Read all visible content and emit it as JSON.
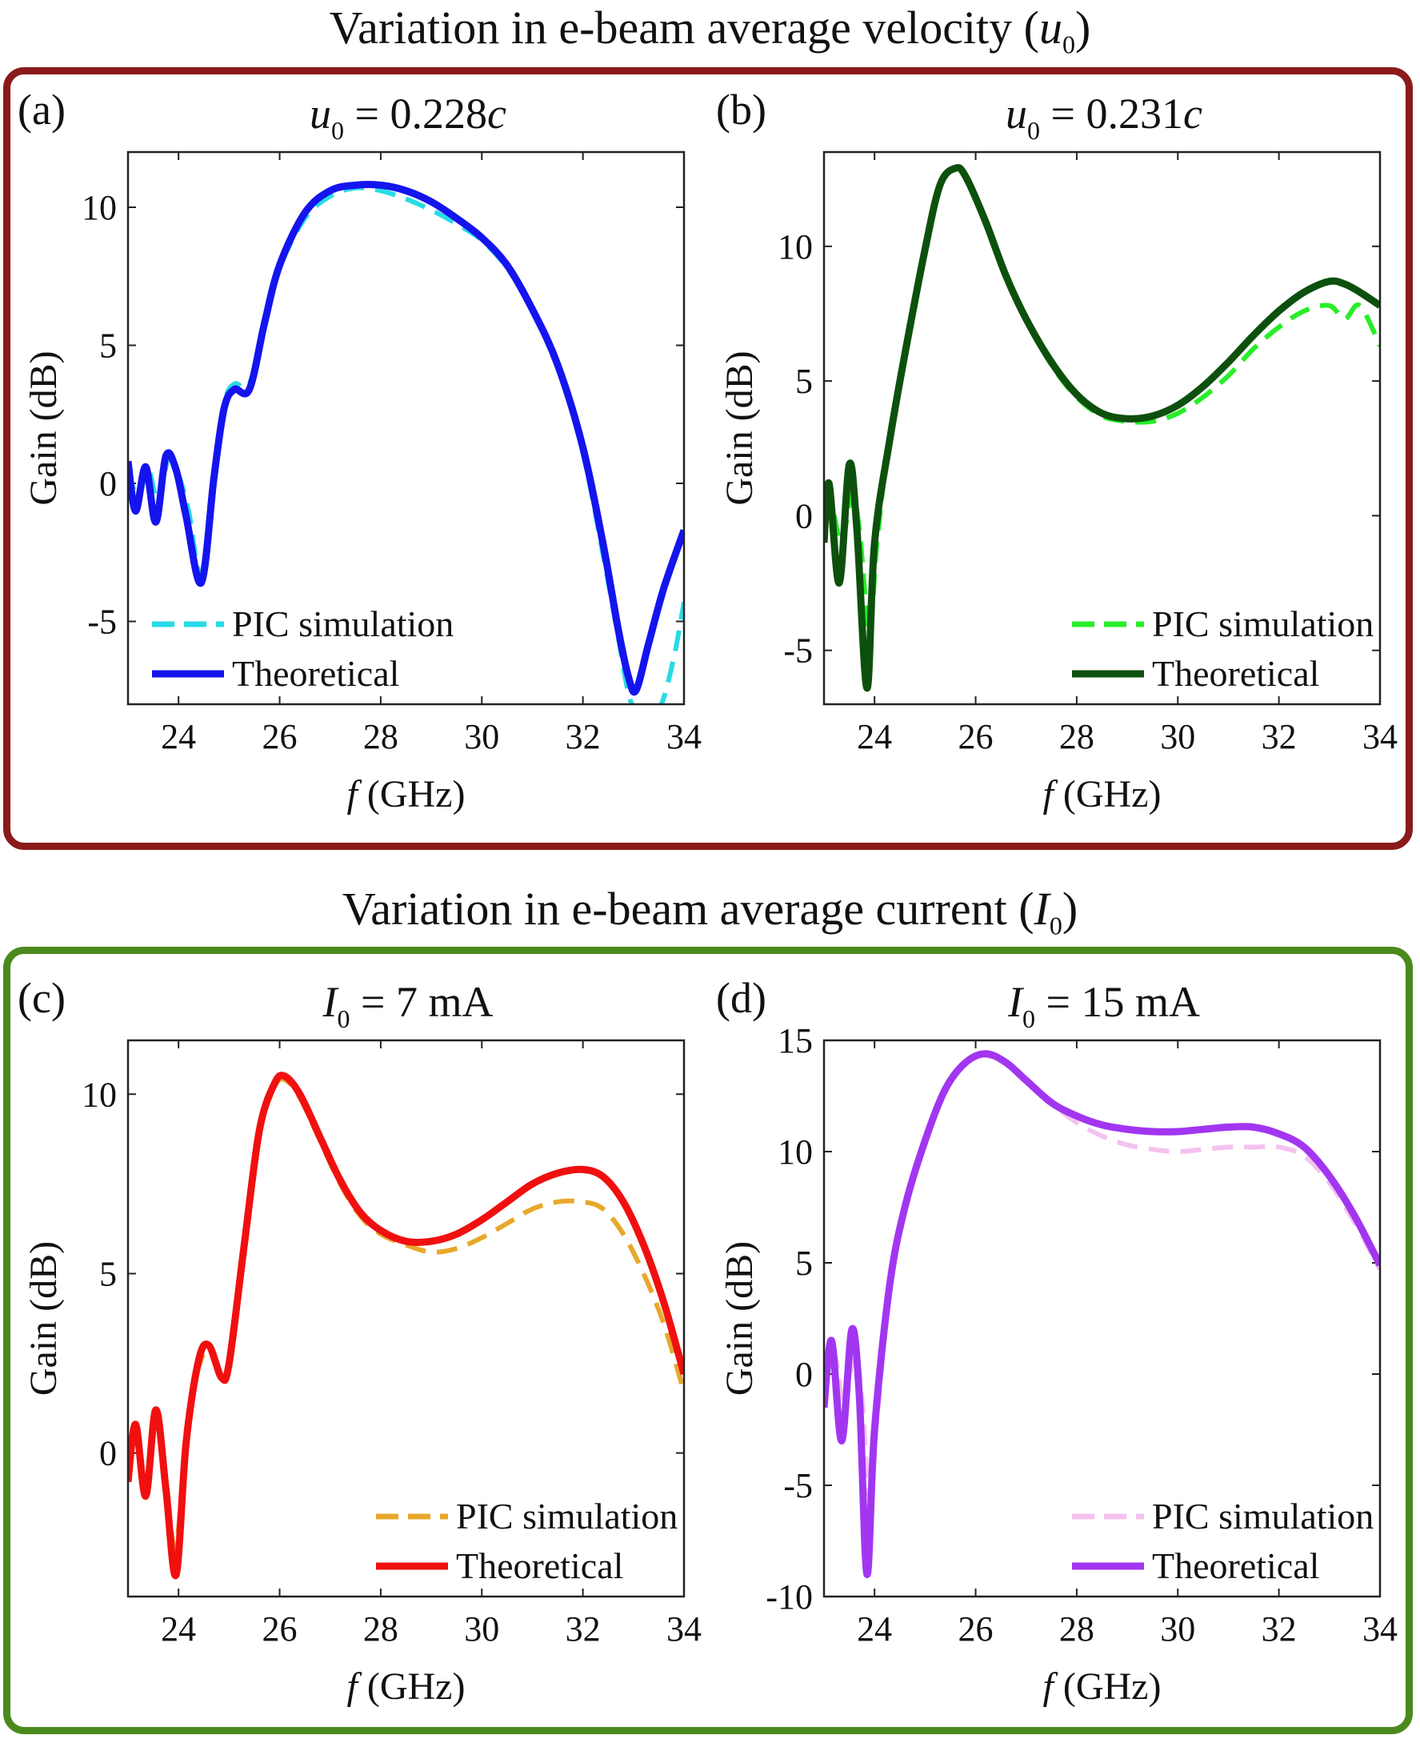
{
  "sections": [
    {
      "title_prefix": "Variation in e-beam average velocity (",
      "title_symbol": "u",
      "title_sub": "0",
      "title_suffix": ")",
      "frame_color": "#8b1a1a"
    },
    {
      "title_prefix": "Variation in e-beam average current (",
      "title_symbol": "I",
      "title_sub": "0",
      "title_suffix": ")",
      "frame_color": "#4a8a1c"
    }
  ],
  "chart_data": [
    {
      "type": "line",
      "panel": "(a)",
      "title_symbol": "u",
      "title_sub": "0",
      "title_rest": " = 0.228",
      "title_unit": "c",
      "xlabel_italic": "f",
      "xlabel": " (GHz)",
      "ylabel": "Gain (dB)",
      "xlim": [
        23,
        34
      ],
      "ylim": [
        -8,
        12
      ],
      "xticks": [
        "24",
        "26",
        "28",
        "30",
        "32",
        "34"
      ],
      "xtick_values": [
        24,
        26,
        28,
        30,
        32,
        34
      ],
      "yticks": [
        "-5",
        "0",
        "5",
        "10"
      ],
      "ytick_values": [
        -5,
        0,
        5,
        10
      ],
      "legend_position": "bottom-left",
      "series": [
        {
          "name": "PIC simulation",
          "style": "dashed",
          "color": "#27dbe6",
          "x": [
            23,
            23.2,
            23.4,
            23.6,
            23.8,
            24.0,
            24.2,
            24.45,
            24.7,
            24.9,
            25.1,
            25.4,
            25.7,
            26.0,
            26.5,
            27.0,
            27.5,
            28.0,
            28.5,
            29.0,
            29.5,
            30.0,
            30.5,
            31.0,
            31.5,
            32.0,
            32.4,
            32.7,
            32.9,
            33.05,
            33.3,
            33.55,
            33.8,
            34.0
          ],
          "y": [
            0.5,
            -0.5,
            0.5,
            -0.7,
            0.9,
            0.3,
            -1.0,
            -3.3,
            0.5,
            2.9,
            3.6,
            3.6,
            5.8,
            7.8,
            9.6,
            10.4,
            10.7,
            10.6,
            10.3,
            9.9,
            9.4,
            8.8,
            7.8,
            6.3,
            4.2,
            1.1,
            -2.6,
            -5.6,
            -7.6,
            -8.2,
            -8.2,
            -8.0,
            -6.3,
            -4.3
          ]
        },
        {
          "name": "Theoretical",
          "style": "solid",
          "color": "#1414ee",
          "x": [
            23,
            23.15,
            23.35,
            23.55,
            23.75,
            23.95,
            24.15,
            24.45,
            24.7,
            24.9,
            25.1,
            25.4,
            25.7,
            26.0,
            26.5,
            27.0,
            27.5,
            28.0,
            28.5,
            29.0,
            29.5,
            30.0,
            30.5,
            31.0,
            31.5,
            32.0,
            32.4,
            32.7,
            32.9,
            33.05,
            33.3,
            33.6,
            34.0
          ],
          "y": [
            0.8,
            -1.0,
            0.6,
            -1.4,
            1.0,
            0.5,
            -1.2,
            -3.6,
            0.2,
            2.7,
            3.4,
            3.4,
            5.8,
            7.9,
            9.8,
            10.6,
            10.8,
            10.8,
            10.6,
            10.2,
            9.6,
            8.9,
            7.9,
            6.3,
            4.3,
            1.3,
            -2.2,
            -5.3,
            -7.0,
            -7.5,
            -5.8,
            -3.8,
            -1.7
          ]
        }
      ]
    },
    {
      "type": "line",
      "panel": "(b)",
      "title_symbol": "u",
      "title_sub": "0",
      "title_rest": " = 0.231",
      "title_unit": "c",
      "xlabel_italic": "f",
      "xlabel": " (GHz)",
      "ylabel": "Gain (dB)",
      "xlim": [
        23,
        34
      ],
      "ylim": [
        -7,
        13.5
      ],
      "xticks": [
        "24",
        "26",
        "28",
        "30",
        "32",
        "34"
      ],
      "xtick_values": [
        24,
        26,
        28,
        30,
        32,
        34
      ],
      "yticks": [
        "-5",
        "0",
        "5",
        "10"
      ],
      "ytick_values": [
        -5,
        0,
        5,
        10
      ],
      "legend_position": "bottom-right",
      "series": [
        {
          "name": "PIC simulation",
          "style": "dashed",
          "color": "#27ee27",
          "x": [
            23,
            23.15,
            23.35,
            23.55,
            23.7,
            23.9,
            24.05,
            24.3,
            24.6,
            25.0,
            25.3,
            25.6,
            25.8,
            26.2,
            26.6,
            27.0,
            27.5,
            28.0,
            28.5,
            29.0,
            29.5,
            30.0,
            30.5,
            31.0,
            31.5,
            32.0,
            32.5,
            33.0,
            33.3,
            33.6,
            34.0
          ],
          "y": [
            -0.5,
            0.3,
            -1.0,
            0.8,
            -0.5,
            -4.3,
            -1.0,
            3.0,
            6.0,
            9.9,
            12.3,
            12.9,
            12.6,
            10.9,
            8.9,
            7.3,
            5.6,
            4.4,
            3.7,
            3.5,
            3.5,
            3.8,
            4.4,
            5.2,
            6.2,
            7.0,
            7.6,
            7.8,
            7.3,
            7.8,
            6.3
          ]
        },
        {
          "name": "Theoretical",
          "style": "solid",
          "color": "#0d500d",
          "x": [
            23,
            23.1,
            23.3,
            23.5,
            23.65,
            23.85,
            24.0,
            24.3,
            24.6,
            25.0,
            25.3,
            25.6,
            25.8,
            26.2,
            26.6,
            27.0,
            27.5,
            28.0,
            28.5,
            29.0,
            29.5,
            30.0,
            30.5,
            31.0,
            31.5,
            32.0,
            32.5,
            33.0,
            33.3,
            33.6,
            34.0
          ],
          "y": [
            -1.0,
            1.2,
            -2.5,
            1.9,
            -0.5,
            -6.4,
            -1.0,
            2.8,
            6.0,
            9.9,
            12.3,
            12.9,
            12.6,
            10.9,
            8.9,
            7.3,
            5.7,
            4.5,
            3.8,
            3.6,
            3.7,
            4.1,
            4.8,
            5.7,
            6.7,
            7.6,
            8.3,
            8.7,
            8.6,
            8.3,
            7.8
          ]
        }
      ]
    },
    {
      "type": "line",
      "panel": "(c)",
      "title_symbol": "I",
      "title_sub": "0",
      "title_rest": " = 7 mA",
      "title_unit": "",
      "xlabel_italic": "f",
      "xlabel": " (GHz)",
      "ylabel": "Gain (dB)",
      "xlim": [
        23,
        34
      ],
      "ylim": [
        -4,
        11.5
      ],
      "xticks": [
        "24",
        "26",
        "28",
        "30",
        "32",
        "34"
      ],
      "xtick_values": [
        24,
        26,
        28,
        30,
        32,
        34
      ],
      "yticks": [
        "0",
        "5",
        "10"
      ],
      "ytick_values": [
        0,
        5,
        10
      ],
      "legend_position": "bottom-right",
      "series": [
        {
          "name": "PIC simulation",
          "style": "dashed",
          "color": "#e8a82a",
          "x": [
            23,
            23.15,
            23.35,
            23.55,
            23.75,
            23.95,
            24.15,
            24.4,
            24.6,
            24.85,
            25.0,
            25.3,
            25.6,
            25.9,
            26.1,
            26.4,
            26.8,
            27.2,
            27.6,
            28.0,
            28.5,
            29.0,
            29.5,
            30.0,
            30.5,
            31.0,
            31.5,
            32.0,
            32.4,
            32.8,
            33.2,
            33.6,
            34.0
          ],
          "y": [
            -0.6,
            0.4,
            -0.8,
            0.9,
            -1.0,
            -2.6,
            0.5,
            2.4,
            2.8,
            2.2,
            2.6,
            5.8,
            8.9,
            10.2,
            10.4,
            9.9,
            8.7,
            7.5,
            6.6,
            6.1,
            5.8,
            5.6,
            5.7,
            6.0,
            6.4,
            6.8,
            7.0,
            7.0,
            6.8,
            6.1,
            5.0,
            3.6,
            1.7
          ]
        },
        {
          "name": "Theoretical",
          "style": "solid",
          "color": "#f01010",
          "x": [
            23,
            23.15,
            23.35,
            23.55,
            23.75,
            23.95,
            24.15,
            24.4,
            24.6,
            24.85,
            25.0,
            25.3,
            25.6,
            25.9,
            26.1,
            26.4,
            26.8,
            27.2,
            27.6,
            28.0,
            28.5,
            29.0,
            29.5,
            30.0,
            30.5,
            31.0,
            31.5,
            32.0,
            32.4,
            32.8,
            33.2,
            33.6,
            34.0
          ],
          "y": [
            -0.8,
            0.8,
            -1.2,
            1.2,
            -1.0,
            -3.4,
            0.3,
            2.6,
            3.0,
            2.1,
            2.5,
            5.8,
            9.0,
            10.3,
            10.5,
            10.0,
            8.8,
            7.6,
            6.7,
            6.2,
            5.9,
            5.9,
            6.1,
            6.5,
            7.0,
            7.5,
            7.8,
            7.9,
            7.7,
            7.0,
            5.8,
            4.2,
            2.2
          ]
        }
      ]
    },
    {
      "type": "line",
      "panel": "(d)",
      "title_symbol": "I",
      "title_sub": "0",
      "title_rest": " = 15 mA",
      "title_unit": "",
      "xlabel_italic": "f",
      "xlabel": " (GHz)",
      "ylabel": "Gain (dB)",
      "xlim": [
        23,
        34
      ],
      "ylim": [
        -10,
        15
      ],
      "xticks": [
        "24",
        "26",
        "28",
        "30",
        "32",
        "34"
      ],
      "xtick_values": [
        24,
        26,
        28,
        30,
        32,
        34
      ],
      "yticks": [
        "-10",
        "-5",
        "0",
        "5",
        "10",
        "15"
      ],
      "ytick_values": [
        -10,
        -5,
        0,
        5,
        10,
        15
      ],
      "legend_position": "bottom-right",
      "series": [
        {
          "name": "PIC simulation",
          "style": "dashed",
          "color": "#f4c2ee",
          "x": [
            23,
            23.2,
            23.4,
            23.6,
            23.75,
            23.9,
            24.05,
            24.3,
            24.6,
            25.0,
            25.4,
            25.8,
            26.2,
            26.6,
            27.0,
            27.5,
            28.0,
            28.5,
            29.0,
            29.5,
            30.0,
            30.5,
            31.0,
            31.5,
            32.0,
            32.5,
            33.0,
            33.5,
            34.0
          ],
          "y": [
            -0.5,
            1.0,
            -1.5,
            1.0,
            -1.0,
            -5.5,
            -2.0,
            4.0,
            7.5,
            10.5,
            12.8,
            14.0,
            14.3,
            14.0,
            13.2,
            12.2,
            11.3,
            10.7,
            10.3,
            10.1,
            10.0,
            10.1,
            10.2,
            10.2,
            10.2,
            9.8,
            8.6,
            6.8,
            4.7
          ]
        },
        {
          "name": "Theoretical",
          "style": "solid",
          "color": "#a236f0",
          "x": [
            23,
            23.15,
            23.35,
            23.55,
            23.7,
            23.85,
            24.0,
            24.3,
            24.6,
            25.0,
            25.4,
            25.8,
            26.2,
            26.6,
            27.0,
            27.5,
            28.0,
            28.5,
            29.0,
            29.5,
            30.0,
            30.5,
            31.0,
            31.5,
            32.0,
            32.5,
            33.0,
            33.5,
            34.0
          ],
          "y": [
            -1.5,
            1.5,
            -3.0,
            2.0,
            -1.0,
            -9.0,
            -2.5,
            4.0,
            7.5,
            10.5,
            12.8,
            14.0,
            14.4,
            14.0,
            13.2,
            12.2,
            11.6,
            11.2,
            11.0,
            10.9,
            10.9,
            11.0,
            11.1,
            11.1,
            10.8,
            10.2,
            8.9,
            7.1,
            4.9
          ]
        }
      ]
    }
  ]
}
